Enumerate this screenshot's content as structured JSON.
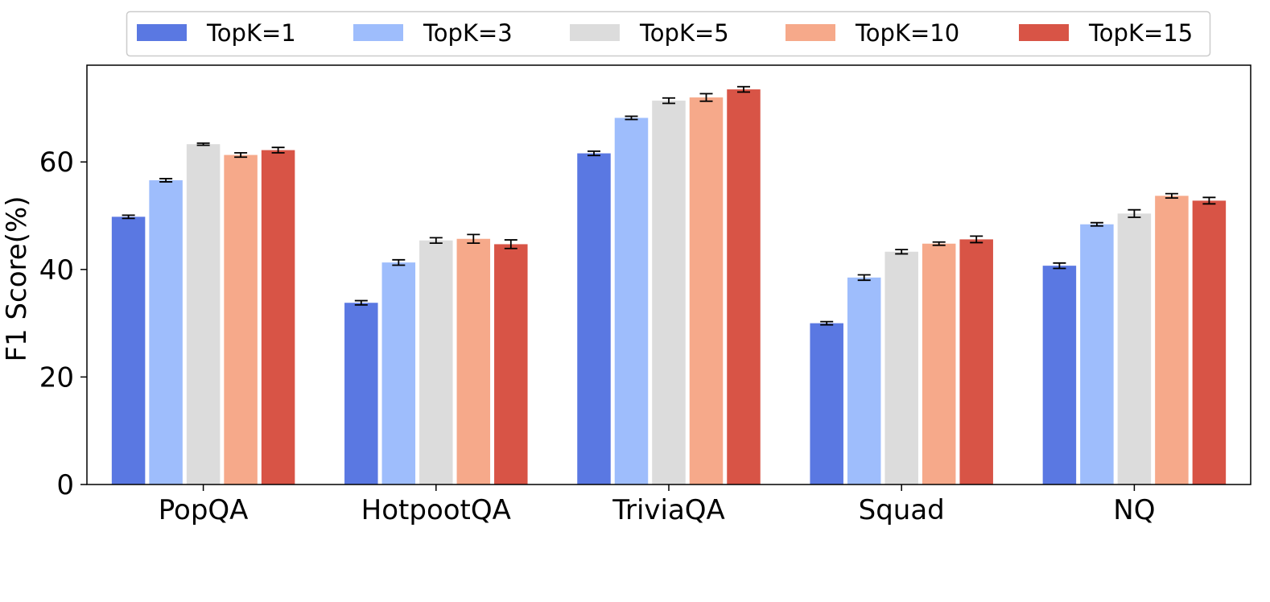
{
  "chart_data": {
    "type": "bar",
    "title": "",
    "xlabel": "",
    "ylabel": "F1 Score(%)",
    "ylim": [
      0,
      78
    ],
    "yticks": [
      0,
      20,
      40,
      60
    ],
    "grid": false,
    "legend_position": "top",
    "categories": [
      "PopQA",
      "HotpootQA",
      "TriviaQA",
      "Squad",
      "NQ"
    ],
    "series": [
      {
        "name": "TopK=1",
        "color": "#5a78e2",
        "values": [
          49.8,
          33.8,
          61.6,
          30.0,
          40.7
        ],
        "errors": [
          0.3,
          0.4,
          0.4,
          0.3,
          0.5
        ]
      },
      {
        "name": "TopK=3",
        "color": "#9ebdfc",
        "values": [
          56.6,
          41.3,
          68.2,
          38.5,
          48.4
        ],
        "errors": [
          0.3,
          0.5,
          0.3,
          0.5,
          0.3
        ]
      },
      {
        "name": "TopK=5",
        "color": "#dcdcdc",
        "values": [
          63.3,
          45.4,
          71.4,
          43.3,
          50.4
        ],
        "errors": [
          0.2,
          0.5,
          0.5,
          0.4,
          0.7
        ]
      },
      {
        "name": "TopK=10",
        "color": "#f6a98a",
        "values": [
          61.3,
          45.7,
          72.0,
          44.8,
          53.7
        ],
        "errors": [
          0.4,
          0.8,
          0.7,
          0.3,
          0.4
        ]
      },
      {
        "name": "TopK=15",
        "color": "#d85446",
        "values": [
          62.2,
          44.7,
          73.5,
          45.6,
          52.8
        ],
        "errors": [
          0.5,
          0.8,
          0.5,
          0.6,
          0.6
        ]
      }
    ]
  }
}
